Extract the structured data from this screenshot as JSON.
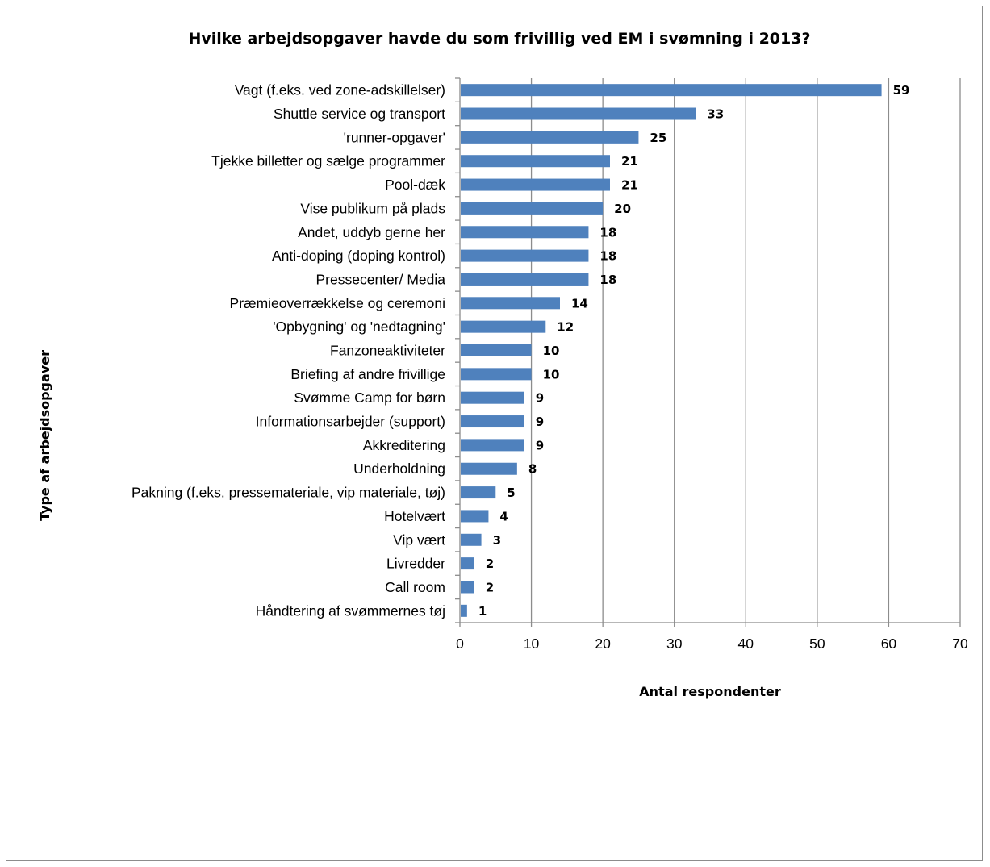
{
  "chart_data": {
    "type": "bar",
    "orientation": "horizontal",
    "title": "Hvilke arbejdsopgaver havde du som frivillig ved EM i svømning i 2013?",
    "xlabel": "Antal respondenter",
    "ylabel": "Type af arbejdsopgaver",
    "xlim": [
      0,
      70
    ],
    "xticks": [
      "0",
      "10",
      "20",
      "30",
      "40",
      "50",
      "60",
      "70"
    ],
    "grid": "vertical",
    "legend": "none",
    "bar_color": "#4f81bd",
    "categories": [
      "Vagt (f.eks. ved zone-adskillelser)",
      "Shuttle service og transport",
      "'runner-opgaver'",
      "Tjekke billetter og sælge programmer",
      "Pool-dæk",
      "Vise publikum på plads",
      "Andet, uddyb gerne her",
      "Anti-doping (doping kontrol)",
      "Pressecenter/ Media",
      "Præmieoverrækkelse og ceremoni",
      "'Opbygning' og 'nedtagning'",
      "Fanzoneaktiviteter",
      "Briefing af andre frivillige",
      "Svømme Camp for børn",
      "Informationsarbejder (support)",
      "Akkreditering",
      "Underholdning",
      "Pakning (f.eks. pressemateriale, vip materiale, tøj)",
      "Hotelvært",
      "Vip vært",
      "Livredder",
      "Call room",
      "Håndtering af svømmernes tøj"
    ],
    "values": [
      59,
      33,
      25,
      21,
      21,
      20,
      18,
      18,
      18,
      14,
      12,
      10,
      10,
      9,
      9,
      9,
      8,
      5,
      4,
      3,
      2,
      2,
      1
    ],
    "data_labels": [
      "59",
      "33",
      "25",
      "21",
      "21",
      "20",
      "18",
      "18",
      "18",
      "14",
      "12",
      "10",
      "10",
      "9",
      "9",
      "9",
      "8",
      "5",
      "4",
      "3",
      "2",
      "2",
      "1"
    ]
  }
}
